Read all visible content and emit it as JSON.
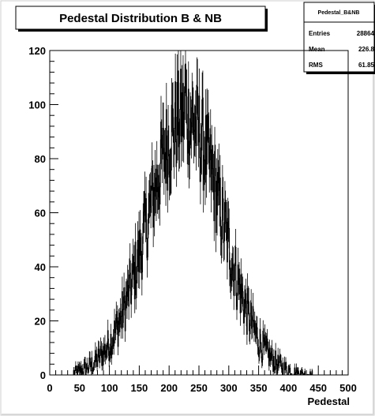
{
  "chart_data": {
    "type": "histogram",
    "title": "Pedestal Distribution B & NB",
    "xlabel": "Pedestal",
    "ylabel": "",
    "xlim": [
      0,
      500
    ],
    "ylim": [
      0,
      120
    ],
    "x_ticks": [
      "0",
      "50",
      "100",
      "150",
      "200",
      "250",
      "300",
      "350",
      "400",
      "450",
      "500"
    ],
    "y_ticks": [
      "0",
      "20",
      "40",
      "60",
      "80",
      "100",
      "120"
    ],
    "grid": false,
    "line_color": "#000000",
    "stats_box": {
      "name": "Pedestal_B&NB",
      "rows": [
        {
          "label": "Entries",
          "value": "28864"
        },
        {
          "label": "Mean",
          "value": "226.8"
        },
        {
          "label": "RMS",
          "value": "61.85"
        }
      ]
    },
    "bin_width": 1,
    "shape": {
      "distribution": "approximately gaussian with bin-to-bin noise",
      "peak_x": 226.8,
      "peak_y": 96,
      "max_y": 115,
      "rms": 61.85,
      "support": [
        40,
        440
      ]
    },
    "sample_values": [
      {
        "x": 50,
        "y": 1
      },
      {
        "x": 100,
        "y": 12
      },
      {
        "x": 150,
        "y": 45
      },
      {
        "x": 175,
        "y": 62
      },
      {
        "x": 200,
        "y": 82
      },
      {
        "x": 225,
        "y": 95
      },
      {
        "x": 250,
        "y": 85
      },
      {
        "x": 275,
        "y": 65
      },
      {
        "x": 300,
        "y": 40
      },
      {
        "x": 325,
        "y": 22
      },
      {
        "x": 350,
        "y": 8
      },
      {
        "x": 375,
        "y": 2
      },
      {
        "x": 400,
        "y": 1
      }
    ]
  }
}
